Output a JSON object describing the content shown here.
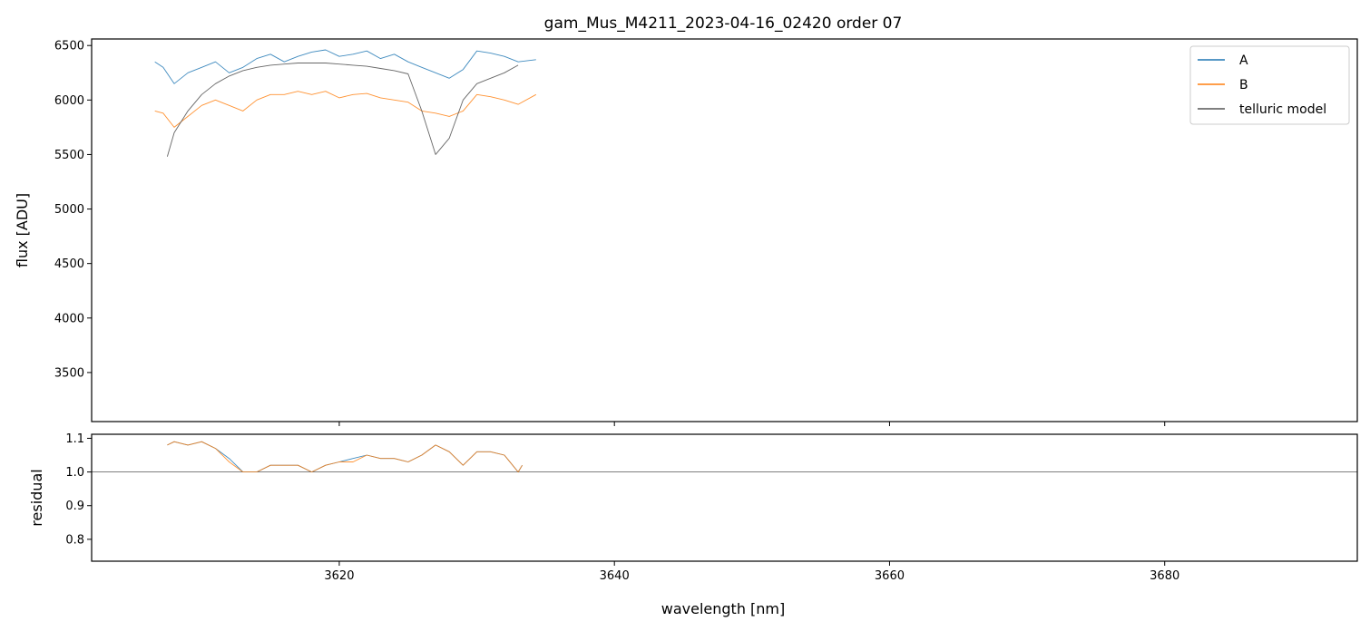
{
  "chart_data": [
    {
      "type": "line",
      "title": "gam_Mus_M4211_2023-04-16_02420  order 07",
      "xlabel": "",
      "ylabel": "flux [ADU]",
      "xlim": [
        3602,
        3694
      ],
      "ylim": [
        3050,
        6560
      ],
      "yticks": [
        3500,
        4000,
        4500,
        5000,
        5500,
        6000,
        6500
      ],
      "xticks": [
        3620,
        3640,
        3660,
        3680
      ],
      "grid": false,
      "legend_position": "top-right",
      "series": [
        {
          "name": "A",
          "color": "#1f77b4",
          "x": [
            3606.6,
            3607.2,
            3608.0,
            3609.0,
            3610.0,
            3611.0,
            3612.0,
            3613.0,
            3614.0,
            3615.0,
            3616.0,
            3617.0,
            3618.0,
            3619.0,
            3620.0,
            3621.0,
            3622.0,
            3623.0,
            3624.0,
            3625.0,
            3626.0,
            3627.0,
            3628.0,
            3629.0,
            3630.0,
            3631.0,
            3632.0,
            3633.0,
            3634.3
          ],
          "y": [
            6350,
            6300,
            6150,
            6250,
            6300,
            6350,
            6250,
            6300,
            6380,
            6420,
            6350,
            6400,
            6440,
            6460,
            6400,
            6420,
            6450,
            6380,
            6420,
            6350,
            6300,
            6250,
            6200,
            6280,
            6450,
            6430,
            6400,
            6350,
            6370
          ]
        },
        {
          "name": "B",
          "color": "#ff7f0e",
          "x": [
            3606.6,
            3607.2,
            3608.0,
            3609.0,
            3610.0,
            3611.0,
            3612.0,
            3613.0,
            3614.0,
            3615.0,
            3616.0,
            3617.0,
            3618.0,
            3619.0,
            3620.0,
            3621.0,
            3622.0,
            3623.0,
            3624.0,
            3625.0,
            3626.0,
            3627.0,
            3628.0,
            3629.0,
            3630.0,
            3631.0,
            3632.0,
            3633.0,
            3634.3
          ],
          "y": [
            5900,
            5880,
            5750,
            5850,
            5950,
            6000,
            5950,
            5900,
            6000,
            6050,
            6050,
            6080,
            6050,
            6080,
            6020,
            6050,
            6060,
            6020,
            6000,
            5980,
            5900,
            5880,
            5850,
            5900,
            6050,
            6030,
            6000,
            5960,
            6050
          ]
        },
        {
          "name": "telluric model",
          "color": "#555555",
          "x": [
            3607.5,
            3608.0,
            3609.0,
            3610.0,
            3611.0,
            3612.0,
            3613.0,
            3614.0,
            3615.0,
            3616.0,
            3617.0,
            3618.0,
            3619.0,
            3620.0,
            3621.0,
            3622.0,
            3623.0,
            3624.0,
            3625.0,
            3626.0,
            3627.0,
            3628.0,
            3629.0,
            3630.0,
            3631.0,
            3632.0,
            3633.0
          ],
          "y": [
            5480,
            5700,
            5900,
            6050,
            6150,
            6220,
            6270,
            6300,
            6320,
            6330,
            6340,
            6340,
            6340,
            6330,
            6320,
            6310,
            6290,
            6270,
            6240,
            5900,
            5500,
            5650,
            6000,
            6150,
            6200,
            6250,
            6320
          ]
        }
      ]
    },
    {
      "type": "line",
      "title": "",
      "xlabel": "wavelength [nm]",
      "ylabel": "residual",
      "xlim": [
        3602,
        3694
      ],
      "ylim": [
        0.735,
        1.112
      ],
      "yticks": [
        0.8,
        0.9,
        1.0,
        1.1
      ],
      "xticks": [
        3620,
        3640,
        3660,
        3680
      ],
      "reference_line": 1.0,
      "grid": false,
      "series": [
        {
          "name": "A",
          "color": "#1f77b4",
          "x": [
            3607.5,
            3608.0,
            3609.0,
            3610.0,
            3611.0,
            3612.0,
            3613.0,
            3614.0,
            3615.0,
            3616.0,
            3617.0,
            3618.0,
            3619.0,
            3620.0,
            3621.0,
            3622.0,
            3623.0,
            3624.0,
            3625.0,
            3626.0,
            3627.0,
            3628.0,
            3629.0,
            3630.0,
            3631.0,
            3632.0,
            3633.0,
            3633.3
          ],
          "y": [
            1.08,
            1.09,
            1.08,
            1.09,
            1.07,
            1.04,
            1.0,
            1.0,
            1.02,
            1.02,
            1.02,
            1.0,
            1.02,
            1.03,
            1.04,
            1.05,
            1.04,
            1.04,
            1.03,
            1.05,
            1.08,
            1.06,
            1.02,
            1.06,
            1.06,
            1.05,
            1.0,
            1.02
          ]
        },
        {
          "name": "B",
          "color": "#ff7f0e",
          "x": [
            3607.5,
            3608.0,
            3609.0,
            3610.0,
            3611.0,
            3612.0,
            3613.0,
            3614.0,
            3615.0,
            3616.0,
            3617.0,
            3618.0,
            3619.0,
            3620.0,
            3621.0,
            3622.0,
            3623.0,
            3624.0,
            3625.0,
            3626.0,
            3627.0,
            3628.0,
            3629.0,
            3630.0,
            3631.0,
            3632.0,
            3633.0,
            3633.3
          ],
          "y": [
            1.08,
            1.09,
            1.08,
            1.09,
            1.07,
            1.03,
            1.0,
            1.0,
            1.02,
            1.02,
            1.02,
            1.0,
            1.02,
            1.03,
            1.03,
            1.05,
            1.04,
            1.04,
            1.03,
            1.05,
            1.08,
            1.06,
            1.02,
            1.06,
            1.06,
            1.05,
            1.0,
            1.02
          ]
        }
      ]
    }
  ]
}
